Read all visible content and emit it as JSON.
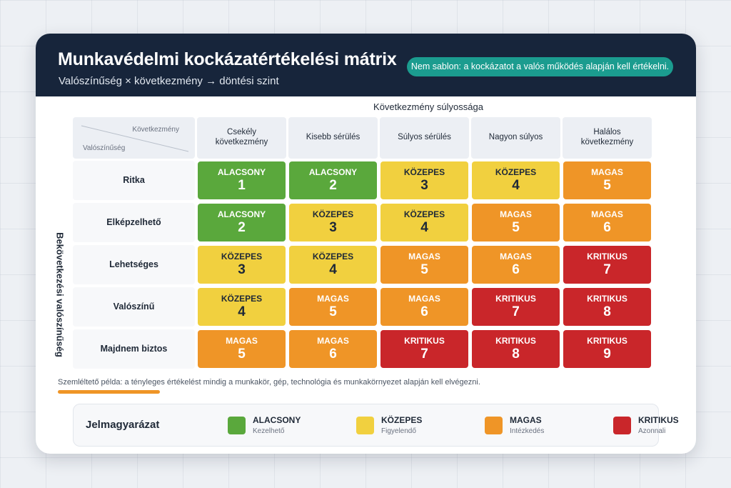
{
  "header": {
    "title": "Munkavédelmi kockázatértékelési mátrix",
    "subtitle": "Valószínűség × következmény → döntési szint",
    "note": "Nem sablon: a kockázatot a valós működés alapján kell értékelni."
  },
  "axes": {
    "consequence_title": "Következmény súlyossága",
    "likelihood_title": "Bekövetkezési valószínűség",
    "corner_top": "Következmény",
    "corner_bottom": "Valószínűség"
  },
  "columns": [
    {
      "label": "Csekély következmény"
    },
    {
      "label": "Kisebb sérülés"
    },
    {
      "label": "Súlyos sérülés"
    },
    {
      "label": "Nagyon súlyos"
    },
    {
      "label": "Halálos következmény"
    }
  ],
  "rows": [
    {
      "label": "Ritka",
      "cells": [
        {
          "level": "ALACSONY",
          "score": "1",
          "class": "low"
        },
        {
          "level": "ALACSONY",
          "score": "2",
          "class": "low"
        },
        {
          "level": "KÖZEPES",
          "score": "3",
          "class": "med"
        },
        {
          "level": "KÖZEPES",
          "score": "4",
          "class": "med"
        },
        {
          "level": "MAGAS",
          "score": "5",
          "class": "high"
        }
      ]
    },
    {
      "label": "Elképzelhető",
      "cells": [
        {
          "level": "ALACSONY",
          "score": "2",
          "class": "low"
        },
        {
          "level": "KÖZEPES",
          "score": "3",
          "class": "med"
        },
        {
          "level": "KÖZEPES",
          "score": "4",
          "class": "med"
        },
        {
          "level": "MAGAS",
          "score": "5",
          "class": "high"
        },
        {
          "level": "MAGAS",
          "score": "6",
          "class": "high"
        }
      ]
    },
    {
      "label": "Lehetséges",
      "cells": [
        {
          "level": "KÖZEPES",
          "score": "3",
          "class": "med"
        },
        {
          "level": "KÖZEPES",
          "score": "4",
          "class": "med"
        },
        {
          "level": "MAGAS",
          "score": "5",
          "class": "high"
        },
        {
          "level": "MAGAS",
          "score": "6",
          "class": "high"
        },
        {
          "level": "KRITIKUS",
          "score": "7",
          "class": "crit"
        }
      ]
    },
    {
      "label": "Valószínű",
      "cells": [
        {
          "level": "KÖZEPES",
          "score": "4",
          "class": "med"
        },
        {
          "level": "MAGAS",
          "score": "5",
          "class": "high"
        },
        {
          "level": "MAGAS",
          "score": "6",
          "class": "high"
        },
        {
          "level": "KRITIKUS",
          "score": "7",
          "class": "crit"
        },
        {
          "level": "KRITIKUS",
          "score": "8",
          "class": "crit"
        }
      ]
    },
    {
      "label": "Majdnem biztos",
      "cells": [
        {
          "level": "MAGAS",
          "score": "5",
          "class": "high"
        },
        {
          "level": "MAGAS",
          "score": "6",
          "class": "high"
        },
        {
          "level": "KRITIKUS",
          "score": "7",
          "class": "crit"
        },
        {
          "level": "KRITIKUS",
          "score": "8",
          "class": "crit"
        },
        {
          "level": "KRITIKUS",
          "score": "9",
          "class": "crit"
        }
      ]
    }
  ],
  "footnote": "Szemléltető példa: a tényleges értékelést mindig a munkakör, gép, technológia és munkakörnyezet alapján kell elvégezni.",
  "legend": {
    "title": "Jelmagyarázat",
    "items": [
      {
        "label": "ALACSONY",
        "desc": "Kezelhető",
        "color": "#5aa83c"
      },
      {
        "label": "KÖZEPES",
        "desc": "Figyelendő",
        "color": "#f1d03f"
      },
      {
        "label": "MAGAS",
        "desc": "Intézkedés",
        "color": "#ef9527"
      },
      {
        "label": "KRITIKUS",
        "desc": "Azonnali",
        "color": "#c9262a"
      }
    ]
  }
}
